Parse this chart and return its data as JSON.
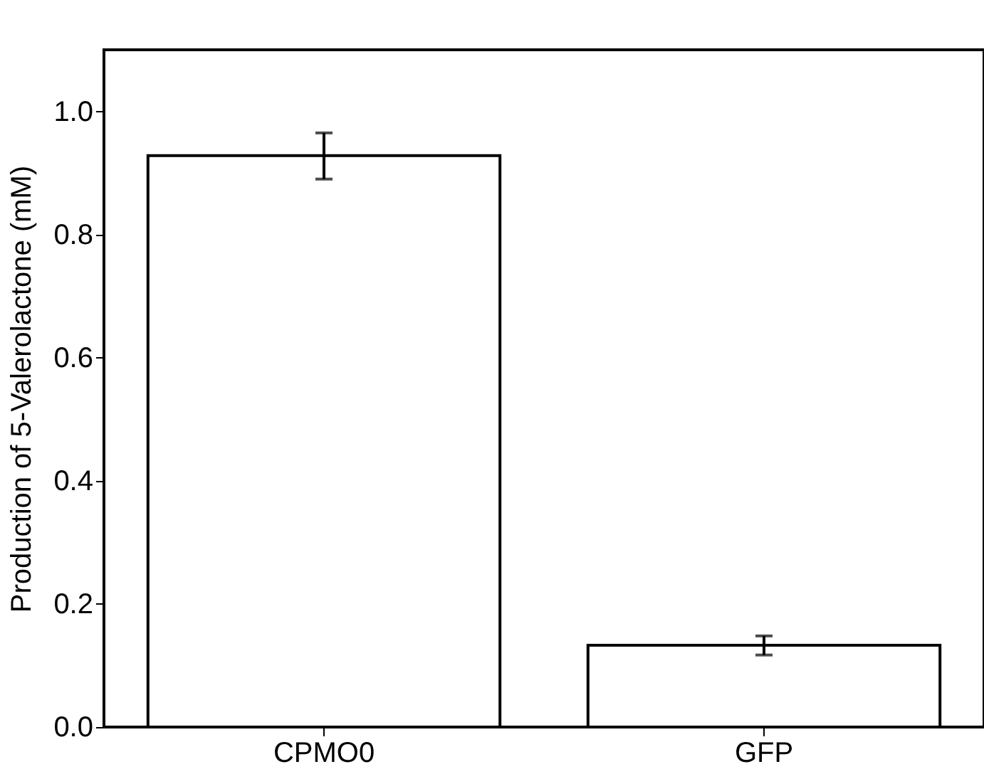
{
  "chart_data": {
    "type": "bar",
    "ylabel": "Production of 5-Valerolactone (mM)",
    "categories": [
      "CPMO0",
      "GFP"
    ],
    "values": [
      0.928,
      0.133
    ],
    "errors": [
      [
        0.89,
        0.965
      ],
      [
        0.117,
        0.148
      ]
    ],
    "ylim": [
      0,
      1.1
    ],
    "yticks": [
      {
        "value": 0,
        "label": "0.0"
      },
      {
        "value": 0.2,
        "label": "0.2"
      },
      {
        "value": 0.4,
        "label": "0.4"
      },
      {
        "value": 0.6,
        "label": "0.6"
      },
      {
        "value": 0.8,
        "label": "0.8"
      },
      {
        "value": 1,
        "label": "1.0"
      }
    ],
    "grid": false
  }
}
